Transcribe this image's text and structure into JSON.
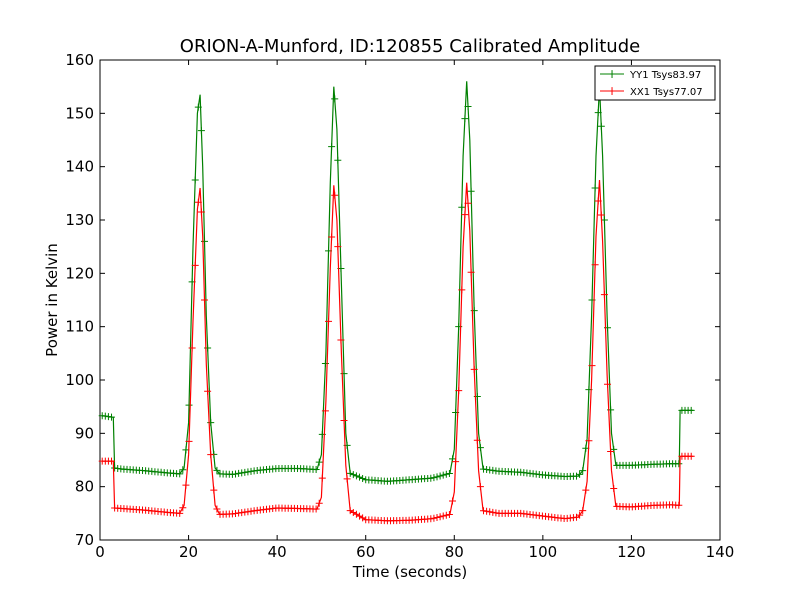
{
  "chart_data": {
    "type": "line",
    "title": "ORION-A-Munford, ID:120855 Calibrated Amplitude",
    "xlabel": "Time (seconds)",
    "ylabel": "Power in Kelvin",
    "xlim": [
      0,
      140
    ],
    "ylim": [
      70,
      160
    ],
    "x_ticks": [
      "0",
      "20",
      "40",
      "60",
      "80",
      "100",
      "120",
      "140"
    ],
    "y_ticks": [
      "70",
      "80",
      "90",
      "100",
      "110",
      "120",
      "130",
      "140",
      "150",
      "160"
    ],
    "grid": false,
    "legend_position": "top-right",
    "marker": "+",
    "series": [
      {
        "name": "YY1 Tsys83.97",
        "color": "#008000",
        "points": [
          [
            0.5,
            93.3
          ],
          [
            3.0,
            93.0
          ],
          [
            3.3,
            83.5
          ],
          [
            5,
            83.3
          ],
          [
            10,
            83.0
          ],
          [
            15,
            82.6
          ],
          [
            18,
            82.4
          ],
          [
            19,
            83.5
          ],
          [
            20,
            92
          ],
          [
            21,
            125
          ],
          [
            22,
            150
          ],
          [
            22.6,
            153.5
          ],
          [
            23.2,
            140
          ],
          [
            24,
            112
          ],
          [
            25,
            92
          ],
          [
            26,
            83.5
          ],
          [
            27,
            82.4
          ],
          [
            30,
            82.3
          ],
          [
            35,
            83.0
          ],
          [
            40,
            83.4
          ],
          [
            45,
            83.4
          ],
          [
            49,
            83.2
          ],
          [
            50,
            86
          ],
          [
            51,
            105
          ],
          [
            52,
            137
          ],
          [
            52.8,
            155
          ],
          [
            53.5,
            147
          ],
          [
            54.5,
            118
          ],
          [
            55.5,
            90
          ],
          [
            56.5,
            82.5
          ],
          [
            60,
            81.3
          ],
          [
            65,
            81.0
          ],
          [
            70,
            81.3
          ],
          [
            75,
            81.6
          ],
          [
            79,
            82.5
          ],
          [
            80,
            87
          ],
          [
            81,
            110
          ],
          [
            82,
            142
          ],
          [
            82.8,
            156
          ],
          [
            83.5,
            145
          ],
          [
            84.5,
            113
          ],
          [
            85.5,
            90
          ],
          [
            86.5,
            83.3
          ],
          [
            90,
            82.9
          ],
          [
            95,
            82.7
          ],
          [
            100,
            82.2
          ],
          [
            105,
            81.9
          ],
          [
            108,
            82.0
          ],
          [
            109,
            83.0
          ],
          [
            110,
            89
          ],
          [
            111,
            112
          ],
          [
            112,
            142
          ],
          [
            112.8,
            155
          ],
          [
            113.5,
            142
          ],
          [
            114.5,
            112
          ],
          [
            115.5,
            90
          ],
          [
            116.5,
            84.0
          ],
          [
            120,
            84.0
          ],
          [
            125,
            84.2
          ],
          [
            129,
            84.3
          ],
          [
            130.8,
            84.3
          ],
          [
            131.0,
            94.3
          ],
          [
            134,
            94.3
          ]
        ]
      },
      {
        "name": "XX1 Tsys77.07",
        "color": "#ff0000",
        "points": [
          [
            0.5,
            84.8
          ],
          [
            3.0,
            84.8
          ],
          [
            3.3,
            76.0
          ],
          [
            5,
            75.9
          ],
          [
            10,
            75.6
          ],
          [
            15,
            75.2
          ],
          [
            18,
            75.0
          ],
          [
            19,
            76.5
          ],
          [
            20,
            86
          ],
          [
            21,
            111
          ],
          [
            22,
            132
          ],
          [
            22.6,
            136
          ],
          [
            23.2,
            127
          ],
          [
            24,
            103
          ],
          [
            25,
            86
          ],
          [
            26,
            76.5
          ],
          [
            27,
            74.8
          ],
          [
            30,
            74.9
          ],
          [
            35,
            75.5
          ],
          [
            40,
            76.0
          ],
          [
            45,
            75.9
          ],
          [
            49,
            75.8
          ],
          [
            50,
            78
          ],
          [
            51,
            96
          ],
          [
            52,
            121
          ],
          [
            52.8,
            136.5
          ],
          [
            53.5,
            130
          ],
          [
            54.5,
            105
          ],
          [
            55.5,
            84
          ],
          [
            56.5,
            75.5
          ],
          [
            60,
            73.8
          ],
          [
            65,
            73.6
          ],
          [
            70,
            73.7
          ],
          [
            75,
            74.0
          ],
          [
            79,
            74.8
          ],
          [
            80,
            79
          ],
          [
            81,
            98
          ],
          [
            82,
            125
          ],
          [
            82.8,
            137
          ],
          [
            83.5,
            128
          ],
          [
            84.5,
            102
          ],
          [
            85.5,
            83
          ],
          [
            86.5,
            75.5
          ],
          [
            90,
            75.0
          ],
          [
            95,
            75.0
          ],
          [
            100,
            74.5
          ],
          [
            105,
            74.0
          ],
          [
            108,
            74.3
          ],
          [
            109,
            75.5
          ],
          [
            110,
            81
          ],
          [
            111,
            100
          ],
          [
            112,
            127
          ],
          [
            112.8,
            137.5
          ],
          [
            113.5,
            126
          ],
          [
            114.5,
            101
          ],
          [
            115.5,
            83
          ],
          [
            116.5,
            76.3
          ],
          [
            120,
            76.2
          ],
          [
            125,
            76.5
          ],
          [
            129,
            76.6
          ],
          [
            130.8,
            76.5
          ],
          [
            131.0,
            85.7
          ],
          [
            134,
            85.7
          ]
        ]
      }
    ]
  }
}
